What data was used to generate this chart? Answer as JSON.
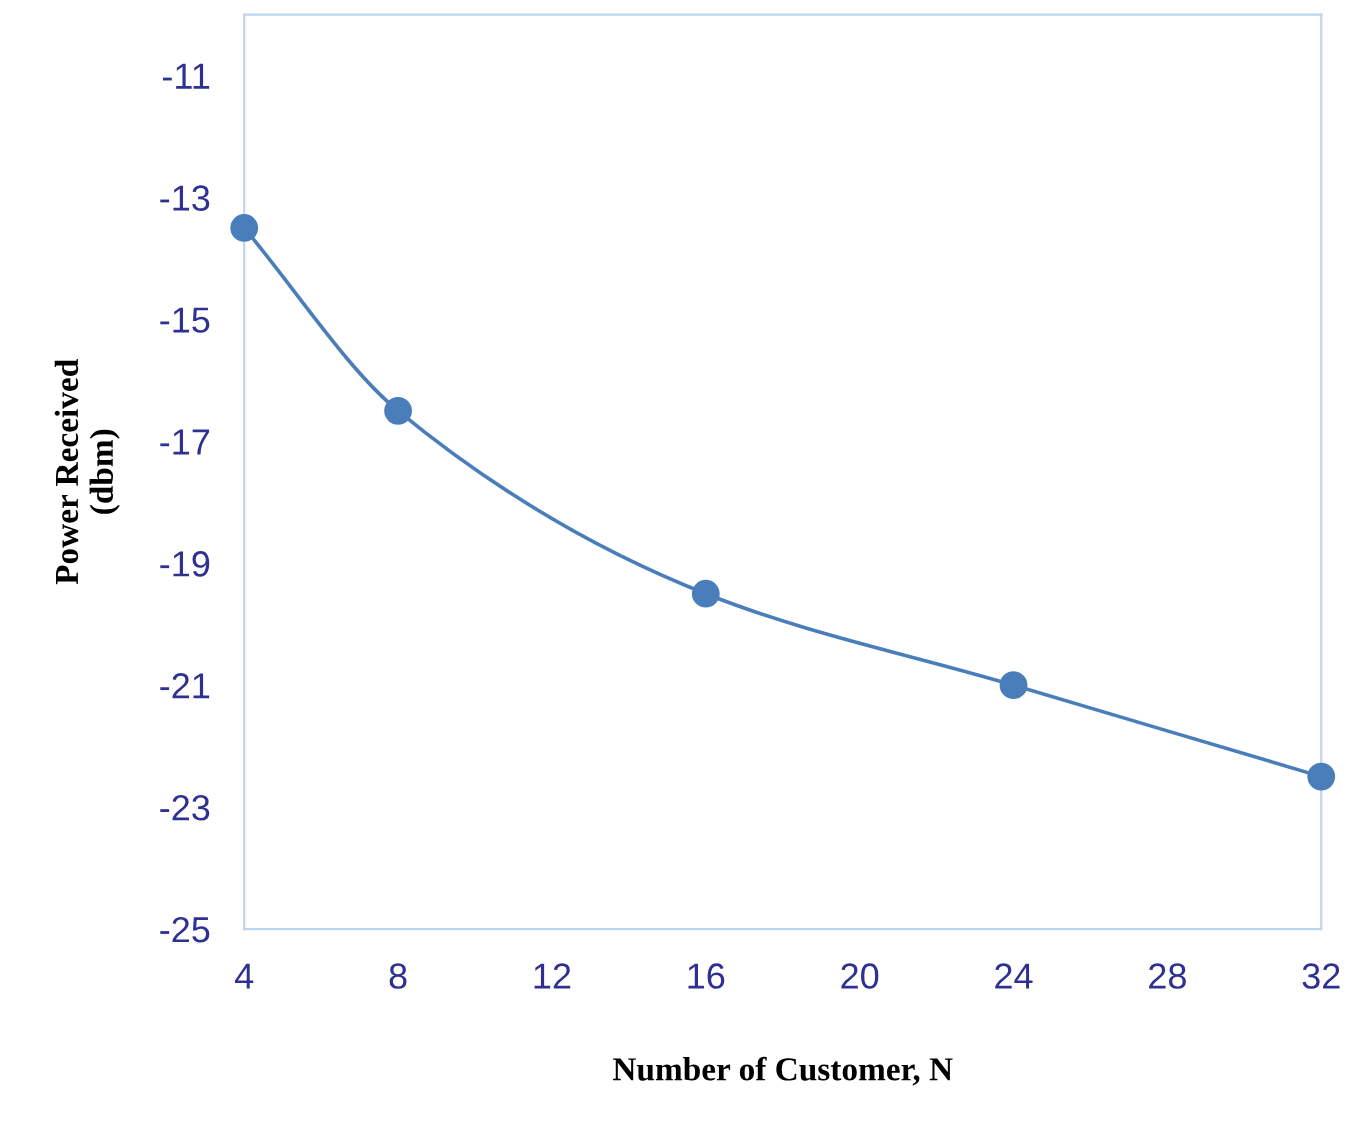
{
  "chart_data": {
    "type": "line",
    "xlabel": "Number of Customer, N",
    "ylabel": "Power Received\n(dbm)",
    "x": [
      4,
      8,
      16,
      24,
      32
    ],
    "series": [
      {
        "color": "#4a7ebb",
        "values": [
          -13.5,
          -16.5,
          -19.5,
          -21,
          -22.5
        ]
      }
    ],
    "xlim": [
      4,
      32
    ],
    "xticks": [
      4,
      8,
      12,
      16,
      20,
      24,
      28,
      32
    ],
    "ylim": [
      -25,
      -10
    ],
    "yticks": [
      -25,
      -23,
      -21,
      -19,
      -17,
      -15,
      -13,
      -11
    ],
    "marker": "circle",
    "line_style": "solid",
    "grid": false
  }
}
